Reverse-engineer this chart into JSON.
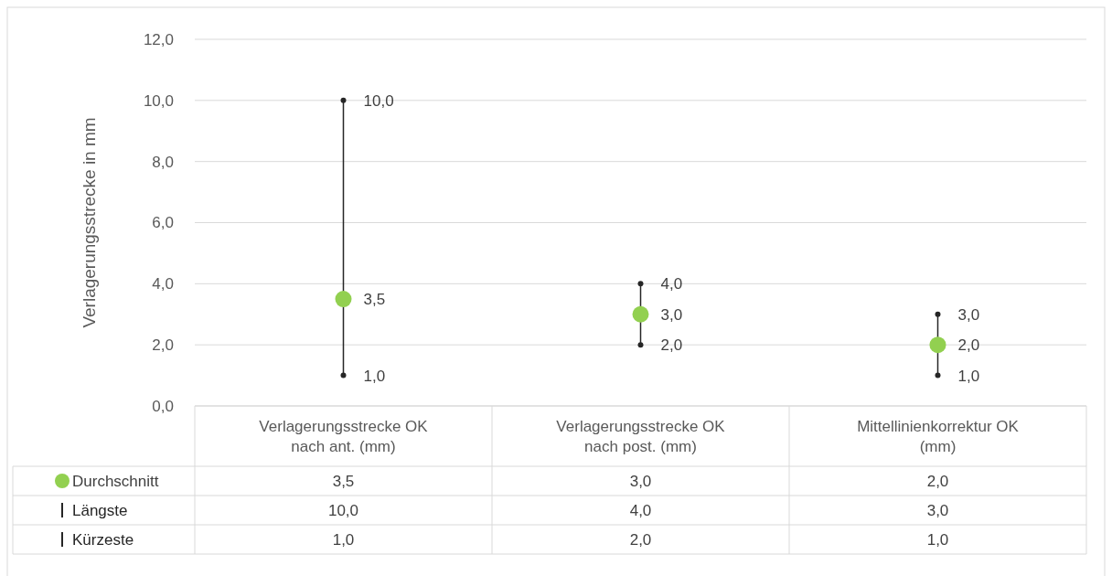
{
  "chart_data": {
    "type": "scatter",
    "ylabel": "Verlagerungsstrecke in mm",
    "categories": [
      "Verlagerungsstrecke OK nach ant. (mm)",
      "Verlagerungsstrecke OK nach post. (mm)",
      "Mittellinienkorrektur OK (mm)"
    ],
    "series": [
      {
        "name": "Durchschnitt",
        "color": "#92d050",
        "marker": "circle",
        "values": [
          3.5,
          3.0,
          2.0
        ],
        "value_labels": [
          "3,5",
          "3,0",
          "2,0"
        ]
      },
      {
        "name": "Längste",
        "color": "#262626",
        "values": [
          10.0,
          4.0,
          3.0
        ],
        "value_labels": [
          "10,0",
          "4,0",
          "3,0"
        ]
      },
      {
        "name": "Kürzeste",
        "color": "#262626",
        "values": [
          1.0,
          2.0,
          1.0
        ],
        "value_labels": [
          "1,0",
          "2,0",
          "1,0"
        ]
      }
    ],
    "ylim": [
      0,
      12
    ],
    "yticks": [
      {
        "value": 0,
        "label": "0,0"
      },
      {
        "value": 2,
        "label": "2,0"
      },
      {
        "value": 4,
        "label": "4,0"
      },
      {
        "value": 6,
        "label": "6,0"
      },
      {
        "value": 8,
        "label": "8,0"
      },
      {
        "value": 10,
        "label": "10,0"
      },
      {
        "value": 12,
        "label": "12,0"
      }
    ],
    "grid": "y",
    "legend": "bottom"
  }
}
